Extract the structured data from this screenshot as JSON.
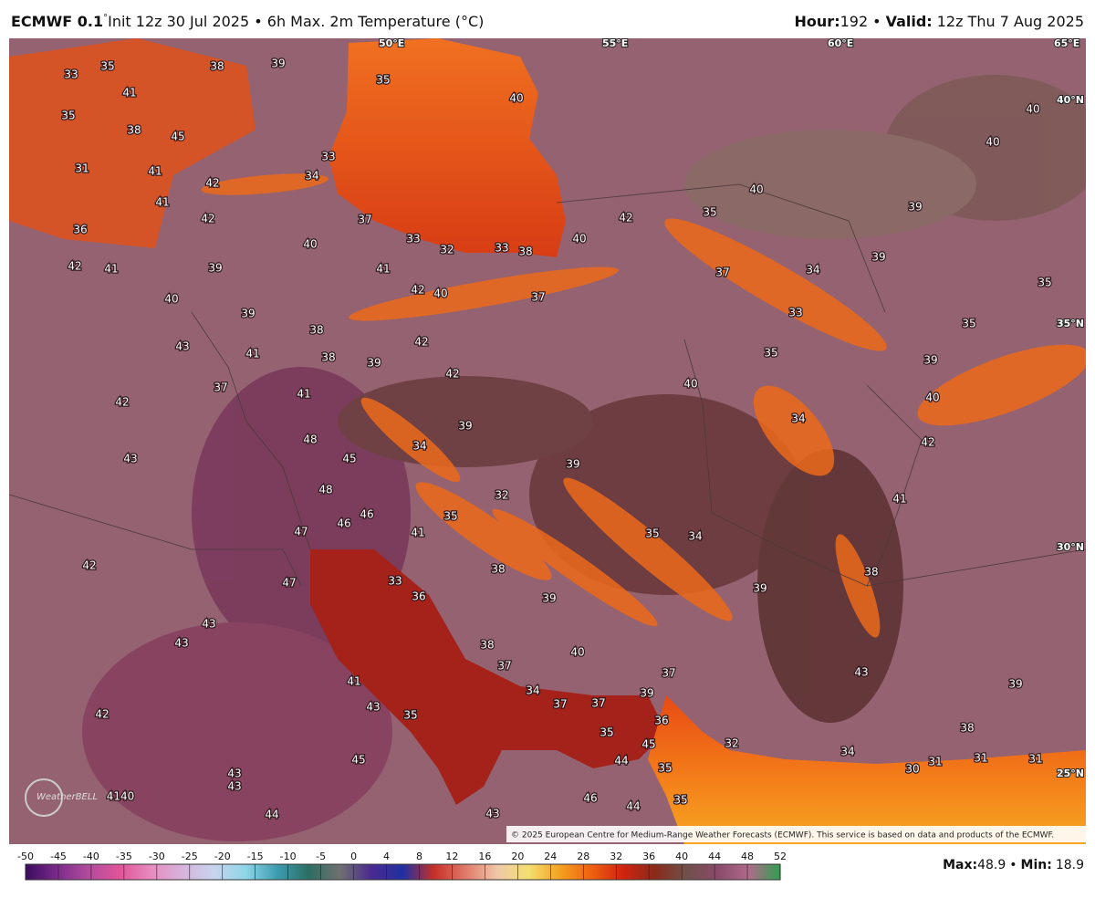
{
  "header": {
    "model": "ECMWF 0.1",
    "degree": "°",
    "description": "Init 12z 30 Jul 2025 • 6h Max. 2m Temperature (°C)",
    "hour_label": "Hour:",
    "hour": "192",
    "separator": "•",
    "valid_label": "Valid:",
    "valid": "12z Thu 7 Aug 2025"
  },
  "map": {
    "coordinates": [
      "50°E",
      "55°E",
      "60°E",
      "65°E",
      "40°N",
      "35°N",
      "30°N",
      "25°N"
    ],
    "labels": [
      "33",
      "35",
      "38",
      "39",
      "35",
      "41",
      "35",
      "38",
      "45",
      "31",
      "41",
      "42",
      "33",
      "34",
      "41",
      "42",
      "37",
      "36",
      "33",
      "32",
      "33",
      "38",
      "40",
      "40",
      "42",
      "40",
      "42",
      "41",
      "39",
      "41",
      "42",
      "40",
      "37",
      "40",
      "39",
      "38",
      "43",
      "42",
      "41",
      "38",
      "39",
      "42",
      "37",
      "41",
      "42",
      "39",
      "48",
      "34",
      "45",
      "43",
      "48",
      "39",
      "32",
      "46",
      "35",
      "47",
      "46",
      "41",
      "42",
      "38",
      "47",
      "33",
      "36",
      "39",
      "43",
      "43",
      "38",
      "40",
      "37",
      "41",
      "34",
      "37",
      "37",
      "39",
      "37",
      "43",
      "35",
      "42",
      "36",
      "35",
      "45",
      "44",
      "45",
      "35",
      "43",
      "43",
      "4140",
      "46",
      "44",
      "43",
      "44",
      "35",
      "40",
      "40",
      "40",
      "39",
      "35",
      "37",
      "34",
      "39",
      "35",
      "33",
      "35",
      "35",
      "39",
      "40",
      "40",
      "34",
      "42",
      "41",
      "35",
      "34",
      "39",
      "38",
      "43",
      "39",
      "38",
      "32",
      "34",
      "31",
      "31",
      "31",
      "30"
    ],
    "copyright": "© 2025 European Centre for Medium-Range Weather Forecasts (ECMWF). This service is based on data and products of the ECMWF.",
    "logo": "WeatherBELL"
  },
  "colorbar": {
    "ticks": [
      -50,
      -45,
      -40,
      -35,
      -30,
      -25,
      -20,
      -15,
      -10,
      -5,
      0,
      4,
      8,
      12,
      16,
      20,
      24,
      28,
      32,
      36,
      40,
      44,
      48,
      52
    ],
    "colors": [
      "#3a0c5c",
      "#7b2a8c",
      "#b24c9c",
      "#e0549a",
      "#e68cc0",
      "#d6b4dc",
      "#c8d4ee",
      "#8ed6e8",
      "#3e9cb0",
      "#2c6e62",
      "#707070",
      "#4a2a90",
      "#2030a0",
      "#c83028",
      "#e07a6a",
      "#f0c8a8",
      "#f4e070",
      "#f4a020",
      "#f06010",
      "#d02410",
      "#8a2a1a",
      "#705048",
      "#8a4a6a",
      "#b06a8a",
      "#30a050"
    ]
  },
  "stats": {
    "max_label": "Max:",
    "max": "48.9",
    "separator": "•",
    "min_label": "Min:",
    "min": "18.9"
  }
}
